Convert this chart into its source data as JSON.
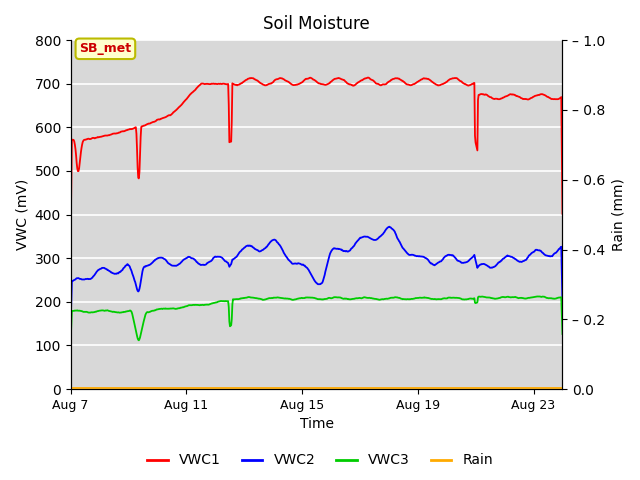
{
  "title": "Soil Moisture",
  "xlabel": "Time",
  "ylabel_left": "VWC (mV)",
  "ylabel_right": "Rain (mm)",
  "ylim_left": [
    0,
    800
  ],
  "ylim_right": [
    0.0,
    1.0
  ],
  "yticks_left": [
    0,
    100,
    200,
    300,
    400,
    500,
    600,
    700,
    800
  ],
  "yticks_right": [
    0.0,
    0.2,
    0.4,
    0.6,
    0.8,
    1.0
  ],
  "bg_color": "#d8d8d8",
  "annotation_text": "SB_met",
  "annotation_bbox_facecolor": "#ffffcc",
  "annotation_bbox_edgecolor": "#bbbb00",
  "annotation_text_color": "#cc0000",
  "line_colors": {
    "VWC1": "#ff0000",
    "VWC2": "#0000ff",
    "VWC3": "#00cc00",
    "Rain": "#ffaa00"
  },
  "xtick_days": [
    7,
    11,
    15,
    19,
    23
  ],
  "n_days": 17
}
